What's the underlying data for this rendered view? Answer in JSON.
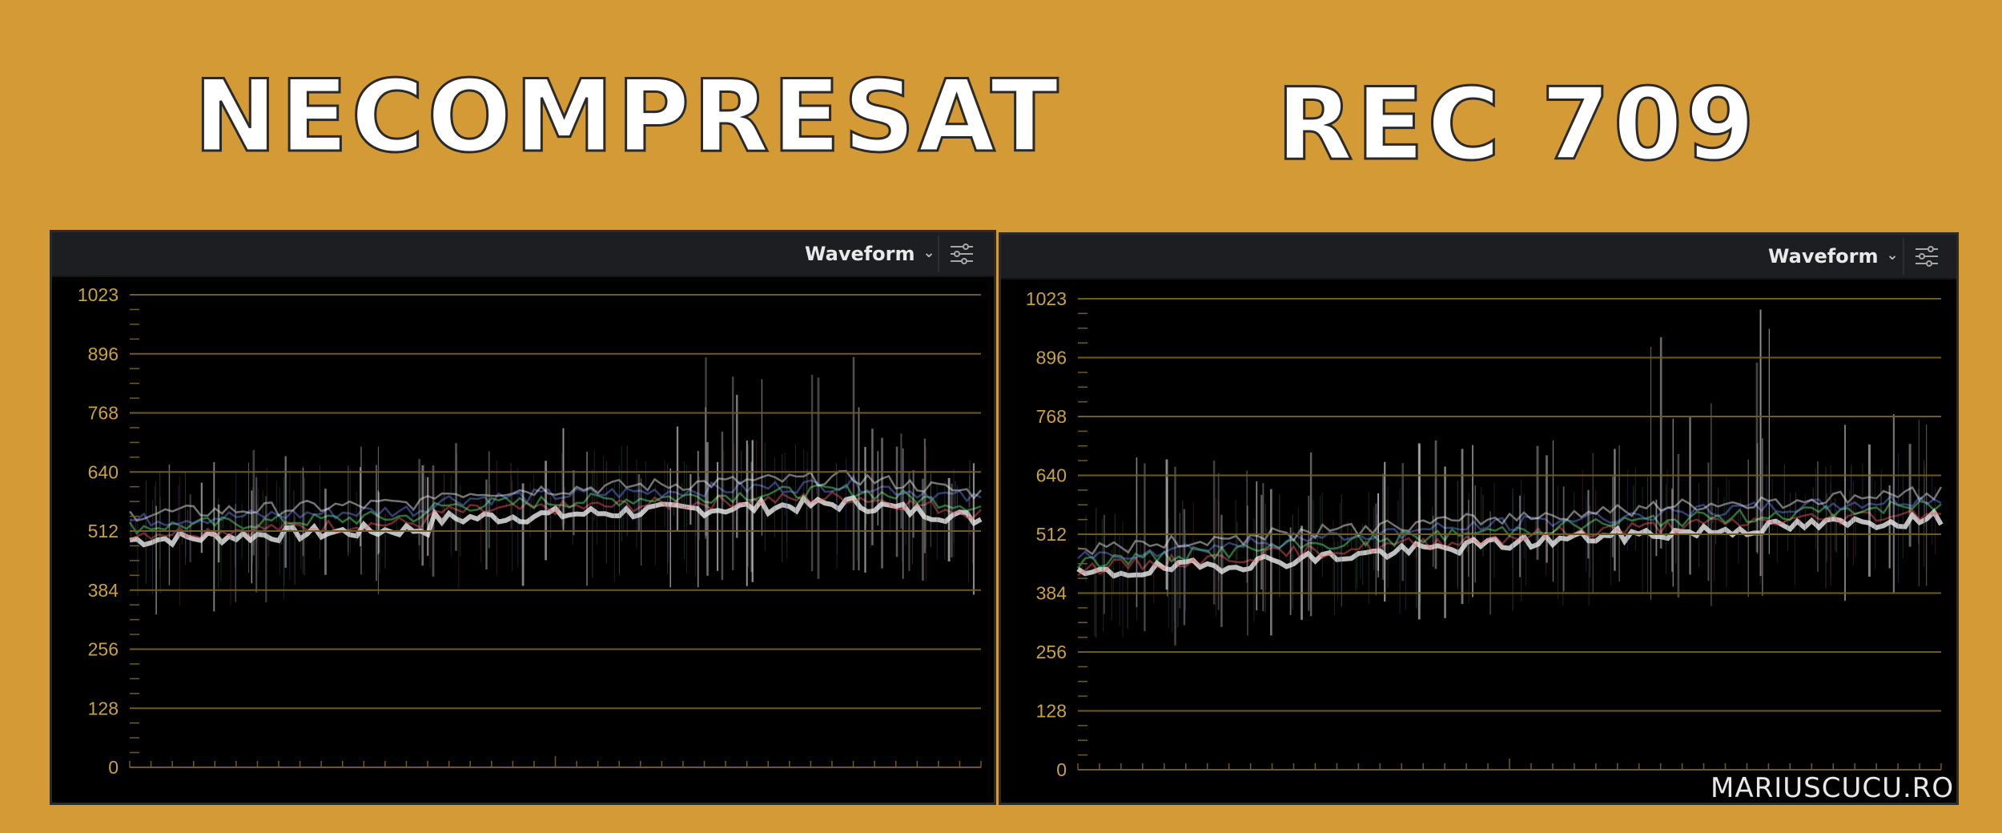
{
  "titles": {
    "left": "NECOMPRESAT",
    "right": "REC 709"
  },
  "panels": [
    {
      "mode_label": "Waveform",
      "scale_labels": [
        "1023",
        "896",
        "768",
        "640",
        "512",
        "384",
        "256",
        "128",
        "0"
      ]
    },
    {
      "mode_label": "Waveform",
      "scale_labels": [
        "1023",
        "896",
        "768",
        "640",
        "512",
        "384",
        "256",
        "128",
        "0"
      ]
    }
  ],
  "icons": {
    "dropdown": "chevron-down-icon",
    "settings": "sliders-icon"
  },
  "colors": {
    "background": "#d49a35",
    "scale_text": "#c9a13e",
    "graticule": "#6f5a22"
  },
  "watermark": "MARIUSCUCU.RO"
}
